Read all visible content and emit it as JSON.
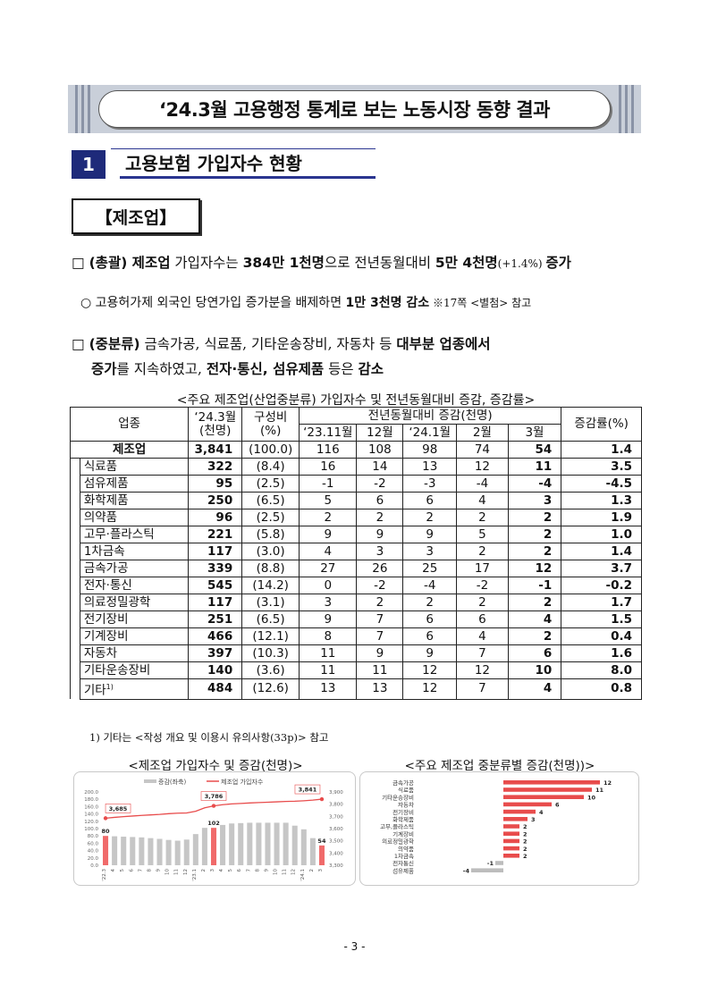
{
  "banner": {
    "title": "‘24.3월 고용행정 통계로 보는 노동시장 동향 결과"
  },
  "section": {
    "number": "1",
    "title": "고용보험 가입자수 현황"
  },
  "subsection": {
    "label": "【제조업】"
  },
  "para1": {
    "bullet": "□",
    "lead": "(총괄) 제조업",
    "t1": " 가입자수는 ",
    "b1": "384만 1천명",
    "t2": "으로 전년동월대비 ",
    "b2": "5만 4천명",
    "t3": "(+1.4%) ",
    "b3": "증가"
  },
  "para2": {
    "bullet": "○",
    "t1": "고용허가제 외국인 당연가입 증가분을 배제하면 ",
    "b1": "1만 3천명 감소",
    "t2": " ※17쪽 <별첨> 참고"
  },
  "para3": {
    "bullet": "□",
    "lead": "(중분류)",
    "t1": " 금속가공, 식료품, 기타운송장비, 자동차 등 ",
    "b1": "대부분 업종에서",
    "b2": "증가",
    "t2": "를 지속하였고, ",
    "b3": "전자·통신, 섬유제품",
    "t3": " 등은 ",
    "b4": "감소"
  },
  "table": {
    "caption": "<주요 제조업(산업중분류) 가입자수 및 전년동월대비 증감, 증감률>",
    "headers": {
      "industry": "업종",
      "count_l1": "‘24.3월",
      "count_l2": "(천명)",
      "share_l1": "구성비",
      "share_l2": "(%)",
      "yoy": "전년동월대비 증감(천명)",
      "rate": "증감률(%)",
      "months": [
        "‘23.11월",
        "12월",
        "‘24.1월",
        "2월",
        "3월"
      ]
    },
    "total": {
      "name": "제조업",
      "count": "3,841",
      "share": "(100.0)",
      "m1": "116",
      "m2": "108",
      "m3": "98",
      "m4": "74",
      "m5": "54",
      "rate": "1.4"
    },
    "rows": [
      {
        "name": "식료품",
        "count": "322",
        "share": "(8.4)",
        "m1": "16",
        "m2": "14",
        "m3": "13",
        "m4": "12",
        "m5": "11",
        "rate": "3.5"
      },
      {
        "name": "섬유제품",
        "count": "95",
        "share": "(2.5)",
        "m1": "-1",
        "m2": "-2",
        "m3": "-3",
        "m4": "-4",
        "m5": "-4",
        "rate": "-4.5"
      },
      {
        "name": "화학제품",
        "count": "250",
        "share": "(6.5)",
        "m1": "5",
        "m2": "6",
        "m3": "6",
        "m4": "4",
        "m5": "3",
        "rate": "1.3"
      },
      {
        "name": "의약품",
        "count": "96",
        "share": "(2.5)",
        "m1": "2",
        "m2": "2",
        "m3": "2",
        "m4": "2",
        "m5": "2",
        "rate": "1.9"
      },
      {
        "name": "고무·플라스틱",
        "count": "221",
        "share": "(5.8)",
        "m1": "9",
        "m2": "9",
        "m3": "9",
        "m4": "5",
        "m5": "2",
        "rate": "1.0"
      },
      {
        "name": "1차금속",
        "count": "117",
        "share": "(3.0)",
        "m1": "4",
        "m2": "3",
        "m3": "3",
        "m4": "2",
        "m5": "2",
        "rate": "1.4"
      },
      {
        "name": "금속가공",
        "count": "339",
        "share": "(8.8)",
        "m1": "27",
        "m2": "26",
        "m3": "25",
        "m4": "17",
        "m5": "12",
        "rate": "3.7"
      },
      {
        "name": "전자·통신",
        "count": "545",
        "share": "(14.2)",
        "m1": "0",
        "m2": "-2",
        "m3": "-4",
        "m4": "-2",
        "m5": "-1",
        "rate": "-0.2"
      },
      {
        "name": "의료정밀광학",
        "count": "117",
        "share": "(3.1)",
        "m1": "3",
        "m2": "2",
        "m3": "2",
        "m4": "2",
        "m5": "2",
        "rate": "1.7"
      },
      {
        "name": "전기장비",
        "count": "251",
        "share": "(6.5)",
        "m1": "9",
        "m2": "7",
        "m3": "6",
        "m4": "6",
        "m5": "4",
        "rate": "1.5"
      },
      {
        "name": "기계장비",
        "count": "466",
        "share": "(12.1)",
        "m1": "8",
        "m2": "7",
        "m3": "6",
        "m4": "4",
        "m5": "2",
        "rate": "0.4"
      },
      {
        "name": "자동차",
        "count": "397",
        "share": "(10.3)",
        "m1": "11",
        "m2": "9",
        "m3": "9",
        "m4": "7",
        "m5": "6",
        "rate": "1.6"
      },
      {
        "name": "기타운송장비",
        "count": "140",
        "share": "(3.6)",
        "m1": "11",
        "m2": "11",
        "m3": "12",
        "m4": "12",
        "m5": "10",
        "rate": "8.0"
      },
      {
        "name": "기타",
        "name_sup": "1)",
        "count": "484",
        "share": "(12.6)",
        "m1": "13",
        "m2": "13",
        "m3": "12",
        "m4": "7",
        "m5": "4",
        "rate": "0.8"
      }
    ],
    "footnote": "1) 기타는 <작성 개요 및 이용시 유의사항(33p)> 참고"
  },
  "chart1_title": "<제조업 가입자수 및 증감(천명)>",
  "chart2_title": "<주요 제조업 중분류별 증감(천명))>",
  "chart_data": [
    {
      "type": "bar",
      "title": "<제조업 가입자수 및 증감(천명)>",
      "legend": [
        "증감(좌축)",
        "제조업 가입자수"
      ],
      "legend_position": "top-center",
      "categories": [
        "'22.3",
        "4",
        "5",
        "6",
        "7",
        "8",
        "9",
        "10",
        "11",
        "12",
        "'23.1",
        "2",
        "3",
        "4",
        "5",
        "6",
        "7",
        "8",
        "9",
        "10",
        "11",
        "12",
        "'24.1",
        "2",
        "3"
      ],
      "series": [
        {
          "name": "증감(좌축)",
          "type": "bar",
          "axis": "left",
          "values": [
            80,
            79,
            78,
            77,
            76,
            74,
            72,
            69,
            67,
            70,
            85,
            102,
            102,
            110,
            114,
            115,
            116,
            116,
            116,
            116,
            116,
            108,
            98,
            74,
            54
          ],
          "highlight_indices": [
            0,
            12,
            24
          ],
          "color": "#f06a6a",
          "base_color": "#c6c6c6"
        },
        {
          "name": "제조업 가입자수",
          "type": "line",
          "axis": "right",
          "values": [
            3685,
            3692,
            3698,
            3703,
            3708,
            3712,
            3716,
            3722,
            3726,
            3728,
            3742,
            3770,
            3786,
            3796,
            3802,
            3806,
            3810,
            3813,
            3816,
            3819,
            3822,
            3824,
            3828,
            3833,
            3841
          ],
          "color": "#e84c4c"
        }
      ],
      "data_labels": {
        "bars": [
          "80",
          "102",
          "54"
        ],
        "line": [
          "3,685",
          "3,786",
          "3,841"
        ]
      },
      "ylim_left": [
        0,
        200
      ],
      "yticks_left": [
        "200.0",
        "180.0",
        "160.0",
        "140.0",
        "120.0",
        "100.0",
        "80.0",
        "60.0",
        "40.0",
        "20.0",
        "0.0"
      ],
      "ylim_right": [
        3300,
        3900
      ],
      "yticks_right": [
        "3,900",
        "3,800",
        "3,700",
        "3,600",
        "3,500",
        "3,400",
        "3,300"
      ]
    },
    {
      "type": "bar",
      "orientation": "horizontal",
      "title": "<주요 제조업 중분류별 증감(천명))>",
      "categories": [
        "금속가공",
        "식료품",
        "기타운송장비",
        "자동차",
        "전기장비",
        "화학제품",
        "고무,플라스틱",
        "기계장비",
        "의료정밀광학",
        "의약품",
        "1차금속",
        "전자통신",
        "섬유제품"
      ],
      "values": [
        12,
        11,
        10,
        6,
        4,
        3,
        2,
        2,
        2,
        2,
        2,
        -1,
        -4
      ],
      "positive_color": "#e84c4c",
      "negative_color": "#bdbdbd"
    }
  ],
  "page_number": "- 3 -"
}
